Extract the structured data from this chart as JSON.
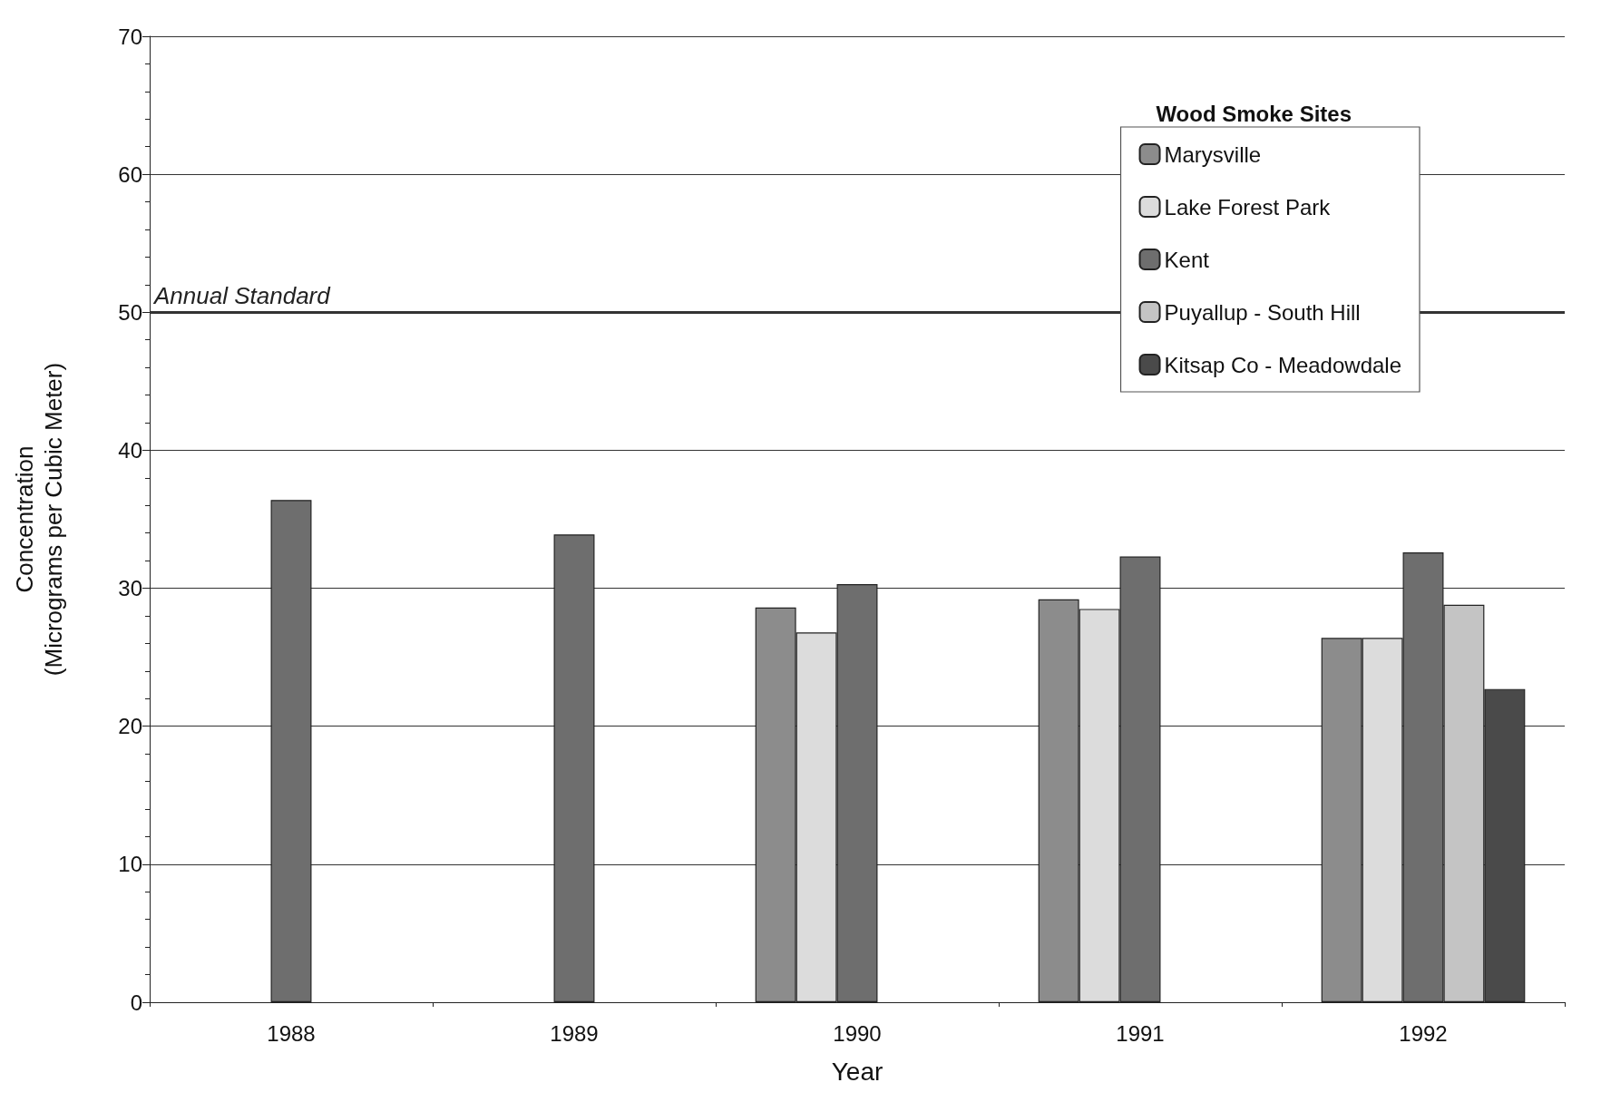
{
  "chart_data": {
    "type": "bar",
    "xlabel": "Year",
    "ylabel": "Concentration\n(Micrograms per Cubic Meter)",
    "legend_title": "Wood Smoke Sites",
    "categories": [
      "1988",
      "1989",
      "1990",
      "1991",
      "1992"
    ],
    "series": [
      {
        "name": "Marysville",
        "color": "#8c8c8c",
        "values": [
          null,
          null,
          28.6,
          29.2,
          26.4
        ]
      },
      {
        "name": "Lake Forest Park",
        "color": "#dcdcdc",
        "values": [
          null,
          null,
          26.8,
          28.5,
          26.4
        ]
      },
      {
        "name": "Kent",
        "color": "#6e6e6e",
        "values": [
          36.4,
          33.9,
          30.3,
          32.3,
          32.6
        ]
      },
      {
        "name": "Puyallup - South Hill",
        "color": "#c4c4c4",
        "values": [
          null,
          null,
          null,
          null,
          28.8
        ]
      },
      {
        "name": "Kitsap Co - Meadowdale",
        "color": "#4a4a4a",
        "values": [
          null,
          null,
          null,
          null,
          22.7
        ]
      }
    ],
    "ylim": [
      0,
      70
    ],
    "yticks": [
      0,
      10,
      20,
      30,
      40,
      50,
      60,
      70
    ],
    "grid": "y",
    "legend": "top right",
    "ref_lines": [
      {
        "axis": "y",
        "value": 50,
        "label": "Annual Standard",
        "color": "#333333"
      }
    ]
  }
}
